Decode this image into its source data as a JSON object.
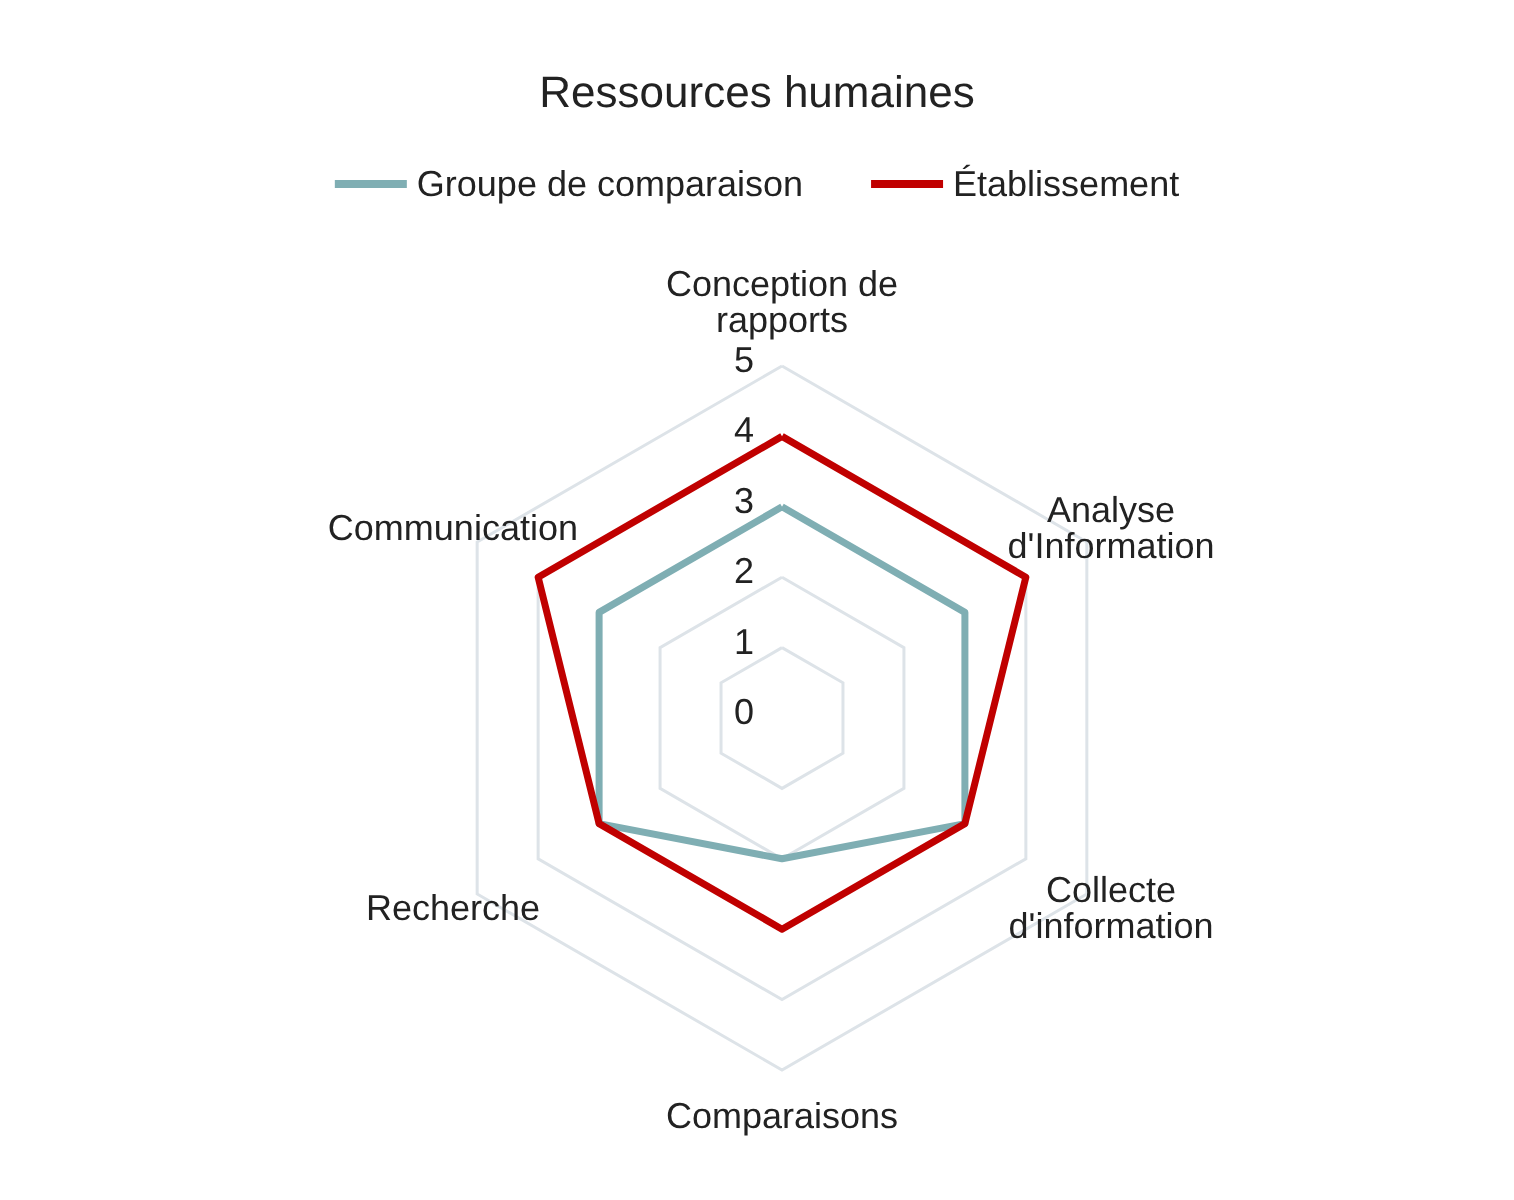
{
  "chart_data": {
    "type": "radar",
    "title": "Ressources humaines",
    "categories": [
      "Conception de rapports",
      "Analyse d'Information",
      "Collecte d'information",
      "Comparaisons",
      "Recherche",
      "Communication"
    ],
    "series": [
      {
        "name": "Groupe de comparaison",
        "color": "#7faeb3",
        "values": [
          3,
          3,
          3,
          2,
          3,
          3
        ]
      },
      {
        "name": "Établissement",
        "color": "#c00000",
        "values": [
          4,
          4,
          3,
          3,
          3,
          4
        ]
      }
    ],
    "ylim": [
      0,
      5
    ],
    "yticks": [
      0,
      1,
      2,
      3,
      4,
      5
    ],
    "legend": "top",
    "grid": true,
    "marker": "none"
  }
}
